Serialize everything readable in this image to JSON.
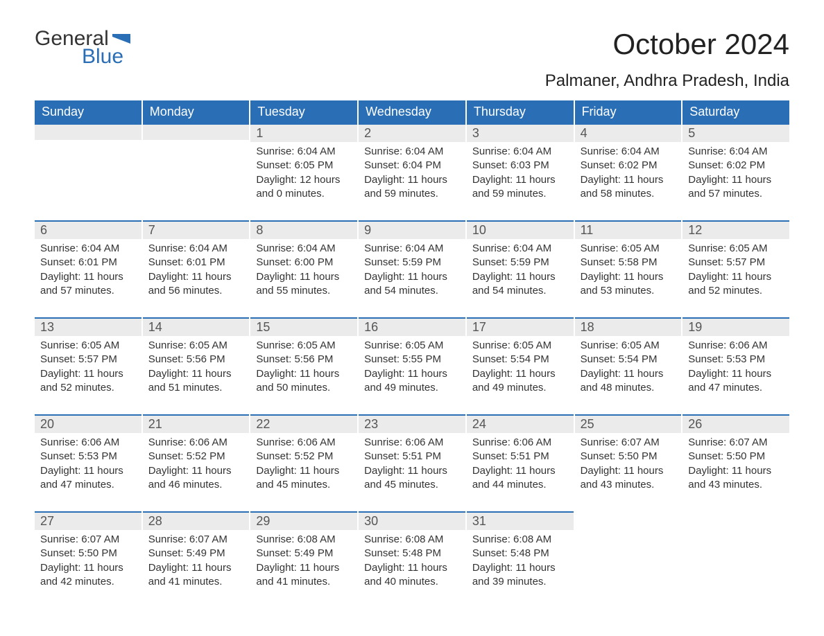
{
  "logo": {
    "word1": "General",
    "word2": "Blue",
    "flag_color": "#2a6fb5",
    "text_color": "#333333"
  },
  "title": "October 2024",
  "subtitle": "Palmaner, Andhra Pradesh, India",
  "colors": {
    "header_bg": "#2a6fb5",
    "header_text": "#ffffff",
    "day_bar_bg": "#ebebeb",
    "day_bar_border": "#2a6fb5",
    "body_text": "#333333",
    "page_bg": "#ffffff"
  },
  "fontsizes": {
    "title": 42,
    "subtitle": 24,
    "dow": 18,
    "daynum": 18,
    "details": 15
  },
  "days_of_week": [
    "Sunday",
    "Monday",
    "Tuesday",
    "Wednesday",
    "Thursday",
    "Friday",
    "Saturday"
  ],
  "leading_blanks": 2,
  "trailing_blanks": 2,
  "days": [
    {
      "n": 1,
      "sunrise": "6:04 AM",
      "sunset": "6:05 PM",
      "daylight": "12 hours and 0 minutes."
    },
    {
      "n": 2,
      "sunrise": "6:04 AM",
      "sunset": "6:04 PM",
      "daylight": "11 hours and 59 minutes."
    },
    {
      "n": 3,
      "sunrise": "6:04 AM",
      "sunset": "6:03 PM",
      "daylight": "11 hours and 59 minutes."
    },
    {
      "n": 4,
      "sunrise": "6:04 AM",
      "sunset": "6:02 PM",
      "daylight": "11 hours and 58 minutes."
    },
    {
      "n": 5,
      "sunrise": "6:04 AM",
      "sunset": "6:02 PM",
      "daylight": "11 hours and 57 minutes."
    },
    {
      "n": 6,
      "sunrise": "6:04 AM",
      "sunset": "6:01 PM",
      "daylight": "11 hours and 57 minutes."
    },
    {
      "n": 7,
      "sunrise": "6:04 AM",
      "sunset": "6:01 PM",
      "daylight": "11 hours and 56 minutes."
    },
    {
      "n": 8,
      "sunrise": "6:04 AM",
      "sunset": "6:00 PM",
      "daylight": "11 hours and 55 minutes."
    },
    {
      "n": 9,
      "sunrise": "6:04 AM",
      "sunset": "5:59 PM",
      "daylight": "11 hours and 54 minutes."
    },
    {
      "n": 10,
      "sunrise": "6:04 AM",
      "sunset": "5:59 PM",
      "daylight": "11 hours and 54 minutes."
    },
    {
      "n": 11,
      "sunrise": "6:05 AM",
      "sunset": "5:58 PM",
      "daylight": "11 hours and 53 minutes."
    },
    {
      "n": 12,
      "sunrise": "6:05 AM",
      "sunset": "5:57 PM",
      "daylight": "11 hours and 52 minutes."
    },
    {
      "n": 13,
      "sunrise": "6:05 AM",
      "sunset": "5:57 PM",
      "daylight": "11 hours and 52 minutes."
    },
    {
      "n": 14,
      "sunrise": "6:05 AM",
      "sunset": "5:56 PM",
      "daylight": "11 hours and 51 minutes."
    },
    {
      "n": 15,
      "sunrise": "6:05 AM",
      "sunset": "5:56 PM",
      "daylight": "11 hours and 50 minutes."
    },
    {
      "n": 16,
      "sunrise": "6:05 AM",
      "sunset": "5:55 PM",
      "daylight": "11 hours and 49 minutes."
    },
    {
      "n": 17,
      "sunrise": "6:05 AM",
      "sunset": "5:54 PM",
      "daylight": "11 hours and 49 minutes."
    },
    {
      "n": 18,
      "sunrise": "6:05 AM",
      "sunset": "5:54 PM",
      "daylight": "11 hours and 48 minutes."
    },
    {
      "n": 19,
      "sunrise": "6:06 AM",
      "sunset": "5:53 PM",
      "daylight": "11 hours and 47 minutes."
    },
    {
      "n": 20,
      "sunrise": "6:06 AM",
      "sunset": "5:53 PM",
      "daylight": "11 hours and 47 minutes."
    },
    {
      "n": 21,
      "sunrise": "6:06 AM",
      "sunset": "5:52 PM",
      "daylight": "11 hours and 46 minutes."
    },
    {
      "n": 22,
      "sunrise": "6:06 AM",
      "sunset": "5:52 PM",
      "daylight": "11 hours and 45 minutes."
    },
    {
      "n": 23,
      "sunrise": "6:06 AM",
      "sunset": "5:51 PM",
      "daylight": "11 hours and 45 minutes."
    },
    {
      "n": 24,
      "sunrise": "6:06 AM",
      "sunset": "5:51 PM",
      "daylight": "11 hours and 44 minutes."
    },
    {
      "n": 25,
      "sunrise": "6:07 AM",
      "sunset": "5:50 PM",
      "daylight": "11 hours and 43 minutes."
    },
    {
      "n": 26,
      "sunrise": "6:07 AM",
      "sunset": "5:50 PM",
      "daylight": "11 hours and 43 minutes."
    },
    {
      "n": 27,
      "sunrise": "6:07 AM",
      "sunset": "5:50 PM",
      "daylight": "11 hours and 42 minutes."
    },
    {
      "n": 28,
      "sunrise": "6:07 AM",
      "sunset": "5:49 PM",
      "daylight": "11 hours and 41 minutes."
    },
    {
      "n": 29,
      "sunrise": "6:08 AM",
      "sunset": "5:49 PM",
      "daylight": "11 hours and 41 minutes."
    },
    {
      "n": 30,
      "sunrise": "6:08 AM",
      "sunset": "5:48 PM",
      "daylight": "11 hours and 40 minutes."
    },
    {
      "n": 31,
      "sunrise": "6:08 AM",
      "sunset": "5:48 PM",
      "daylight": "11 hours and 39 minutes."
    }
  ],
  "labels": {
    "sunrise": "Sunrise: ",
    "sunset": "Sunset: ",
    "daylight": "Daylight: "
  }
}
